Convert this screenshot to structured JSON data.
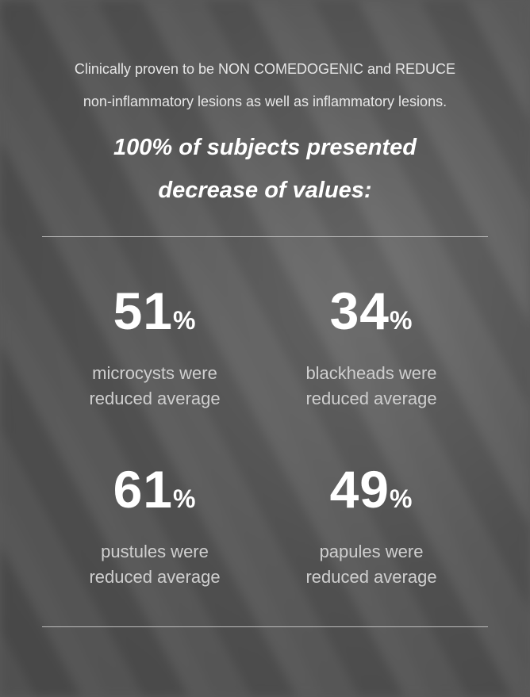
{
  "intro": {
    "line1": "Clinically proven to be NON  COMEDOGENIC and REDUCE",
    "line2": "non-inflammatory lesions as well as inflammatory lesions."
  },
  "headline": {
    "line1": "100% of subjects presented",
    "line2": "decrease of values:"
  },
  "stats": [
    {
      "value": "51",
      "unit": "%",
      "line1": "microcysts were",
      "line2": "reduced average"
    },
    {
      "value": "34",
      "unit": "%",
      "line1": "blackheads were",
      "line2": "reduced average"
    },
    {
      "value": "61",
      "unit": "%",
      "line1": "pustules were",
      "line2": "reduced average"
    },
    {
      "value": "49",
      "unit": "%",
      "line1": "papules were",
      "line2": "reduced average"
    }
  ]
}
